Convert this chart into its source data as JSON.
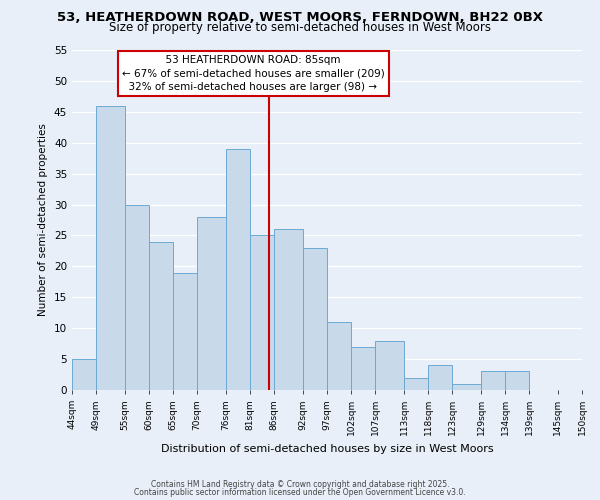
{
  "title1": "53, HEATHERDOWN ROAD, WEST MOORS, FERNDOWN, BH22 0BX",
  "title2": "Size of property relative to semi-detached houses in West Moors",
  "xlabel": "Distribution of semi-detached houses by size in West Moors",
  "ylabel": "Number of semi-detached properties",
  "footer1": "Contains HM Land Registry data © Crown copyright and database right 2025.",
  "footer2": "Contains public sector information licensed under the Open Government Licence v3.0.",
  "bins": [
    44,
    49,
    55,
    60,
    65,
    70,
    76,
    81,
    86,
    92,
    97,
    102,
    107,
    113,
    118,
    123,
    129,
    134,
    139,
    145,
    150
  ],
  "values": [
    5,
    46,
    30,
    24,
    19,
    28,
    39,
    25,
    26,
    23,
    11,
    7,
    8,
    2,
    4,
    1,
    3,
    3,
    0,
    0
  ],
  "bar_color": "#c8d9ea",
  "bar_edgecolor": "#6aaad4",
  "vline_x": 85,
  "vline_color": "#cc0000",
  "annotation_title": "53 HEATHERDOWN ROAD: 85sqm",
  "annotation_line1": "← 67% of semi-detached houses are smaller (209)",
  "annotation_line2": "32% of semi-detached houses are larger (98) →",
  "annotation_box_facecolor": "#ffffff",
  "annotation_box_edgecolor": "#cc0000",
  "ylim": [
    0,
    55
  ],
  "yticks": [
    0,
    5,
    10,
    15,
    20,
    25,
    30,
    35,
    40,
    45,
    50,
    55
  ],
  "tick_labels": [
    "44sqm",
    "49sqm",
    "55sqm",
    "60sqm",
    "65sqm",
    "70sqm",
    "76sqm",
    "81sqm",
    "86sqm",
    "92sqm",
    "97sqm",
    "102sqm",
    "107sqm",
    "113sqm",
    "118sqm",
    "123sqm",
    "129sqm",
    "134sqm",
    "139sqm",
    "145sqm",
    "150sqm"
  ],
  "background_color": "#e8eff8",
  "grid_color": "#ffffff",
  "title1_fontsize": 9.5,
  "title2_fontsize": 8.5,
  "xlabel_fontsize": 8,
  "ylabel_fontsize": 7.5,
  "xtick_fontsize": 6.5,
  "ytick_fontsize": 7.5,
  "annotation_fontsize": 7.5,
  "footer_fontsize": 5.5,
  "footer_color": "#444444"
}
